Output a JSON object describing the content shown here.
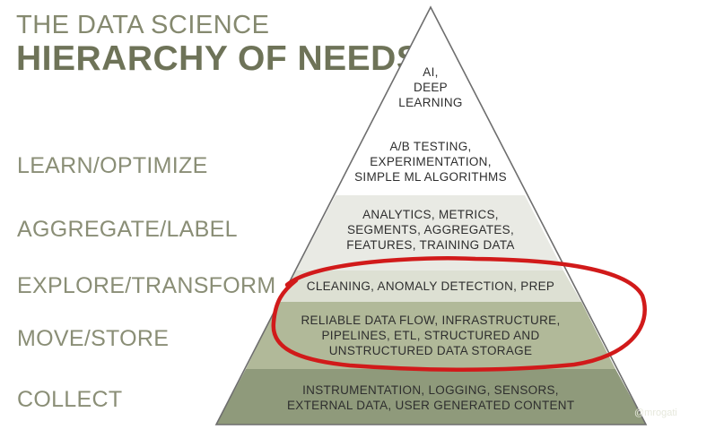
{
  "title": {
    "line1": "THE DATA SCIENCE",
    "line2": "HIERARCHY OF NEEDS"
  },
  "side_labels": {
    "learn": "LEARN/OPTIMIZE",
    "aggregate": "AGGREGATE/LABEL",
    "explore": "EXPLORE/TRANSFORM",
    "move": "MOVE/STORE",
    "collect": "COLLECT"
  },
  "tiers": {
    "ai": [
      "AI,",
      "DEEP",
      "LEARNING"
    ],
    "ab": [
      "A/B TESTING,",
      "EXPERIMENTATION,",
      "SIMPLE ML ALGORITHMS"
    ],
    "analytics": [
      "ANALYTICS, METRICS,",
      "SEGMENTS, AGGREGATES,",
      "FEATURES, TRAINING DATA"
    ],
    "cleaning": [
      "CLEANING, ANOMALY DETECTION, PREP"
    ],
    "reliable": [
      "RELIABLE DATA FLOW, INFRASTRUCTURE,",
      "PIPELINES, ETL, STRUCTURED AND",
      "UNSTRUCTURED DATA STORAGE"
    ],
    "instrumentation": [
      "INSTRUMENTATION, LOGGING, SENSORS,",
      "EXTERNAL DATA, USER GENERATED CONTENT"
    ]
  },
  "credit": "@mrogati",
  "colors": {
    "tier_ai": "#ffffff",
    "tier_ab": "#ffffff",
    "tier_analytics": "#e9eae4",
    "tier_cleaning": "#dde0d3",
    "tier_reliable": "#b1b999",
    "tier_instrumentation": "#8f9a7b",
    "outline": "#6e6e6e",
    "highlight_ellipse": "#d11a1a"
  }
}
